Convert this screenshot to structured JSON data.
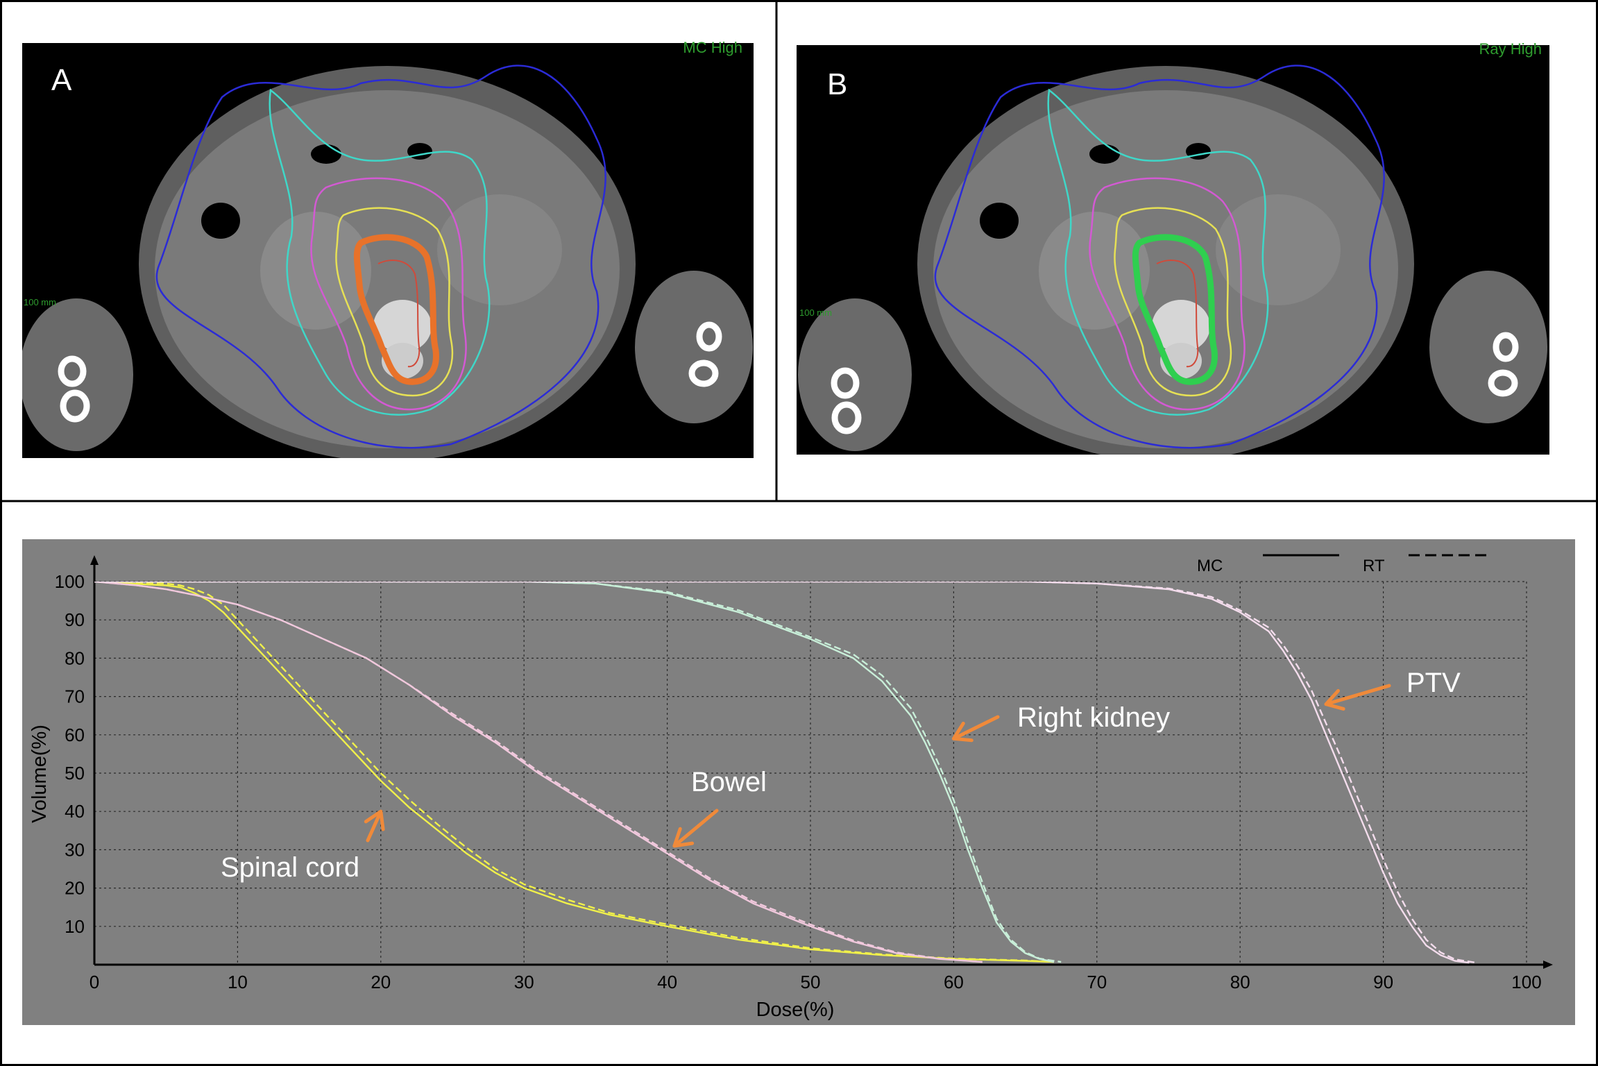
{
  "panels": {
    "a": {
      "letter": "A",
      "corner_label": "MC High",
      "scale_label": "100 mm",
      "target_color": "#e8722a"
    },
    "b": {
      "letter": "B",
      "corner_label": "Ray High",
      "scale_label": "100 mm",
      "target_color": "#2fcf4f"
    }
  },
  "chart_data": {
    "type": "line",
    "title": "",
    "xlabel": "Dose(%)",
    "ylabel": "Volume(%)",
    "xlim": [
      0,
      100
    ],
    "ylim": [
      0,
      100
    ],
    "xticks": [
      0,
      10,
      20,
      30,
      40,
      50,
      60,
      70,
      80,
      90,
      100
    ],
    "yticks": [
      10,
      20,
      30,
      40,
      50,
      60,
      70,
      80,
      90,
      100
    ],
    "grid": true,
    "background": "#808080",
    "legend": {
      "position": "top-right",
      "entries": [
        {
          "label": "MC",
          "style": "solid"
        },
        {
          "label": "RT",
          "style": "dashed"
        }
      ]
    },
    "series": [
      {
        "name": "Spinal cord",
        "color": "#f0f04a",
        "method": "MC",
        "x": [
          0,
          5,
          6,
          7,
          8,
          9,
          10,
          12,
          14,
          16,
          18,
          20,
          22,
          24,
          26,
          28,
          30,
          33,
          36,
          40,
          45,
          50,
          55,
          60,
          65,
          67
        ],
        "y": [
          100,
          99,
          98.5,
          97,
          95,
          92,
          88,
          80,
          72,
          64,
          56,
          48,
          41,
          35,
          29,
          24,
          20,
          16,
          13,
          10,
          6.5,
          4,
          2.5,
          1.5,
          1,
          0.7
        ]
      },
      {
        "name": "Spinal cord",
        "color": "#f0f04a",
        "method": "RT",
        "x": [
          0,
          5,
          6,
          7,
          8,
          9,
          10,
          12,
          14,
          16,
          18,
          20,
          22,
          24,
          26,
          28,
          30,
          33,
          36,
          40,
          45,
          50,
          55,
          60,
          65,
          67
        ],
        "y": [
          100,
          99.5,
          99,
          98,
          96.5,
          94,
          90,
          82,
          74,
          66,
          58,
          50,
          43,
          36.5,
          30.5,
          25,
          21,
          17,
          13.5,
          10.5,
          7,
          4.3,
          2.7,
          1.6,
          1.1,
          0.7
        ]
      },
      {
        "name": "Bowel",
        "color": "#f0c8dc",
        "method": "MC",
        "x": [
          0,
          3,
          5,
          7,
          10,
          13,
          16,
          19,
          22,
          25,
          28,
          31,
          34,
          37,
          40,
          43,
          46,
          50,
          53,
          56,
          59,
          62
        ],
        "y": [
          100,
          99,
          98,
          96.5,
          94,
          90,
          85,
          80,
          73,
          65,
          58,
          50,
          43,
          36,
          29,
          22,
          16,
          10,
          6,
          3,
          1.5,
          0.7
        ]
      },
      {
        "name": "Bowel",
        "color": "#f0c8dc",
        "method": "RT",
        "x": [
          0,
          3,
          5,
          7,
          10,
          13,
          16,
          19,
          22,
          25,
          28,
          31,
          34,
          37,
          40,
          43,
          46,
          50,
          53,
          56,
          59,
          62
        ],
        "y": [
          100,
          99,
          98,
          96.5,
          94,
          90,
          85,
          80,
          73,
          65.5,
          58.5,
          50.5,
          43.5,
          36.5,
          29.5,
          22.5,
          16.5,
          10.5,
          6.3,
          3.2,
          1.6,
          0.7
        ]
      },
      {
        "name": "Right kidney",
        "color": "#c8eed8",
        "method": "MC",
        "x": [
          0,
          30,
          35,
          40,
          45,
          50,
          53,
          55,
          57,
          58,
          59,
          60,
          61,
          62,
          63,
          64,
          65,
          66,
          67
        ],
        "y": [
          100,
          100,
          99.5,
          97,
          92,
          85,
          80,
          74,
          65,
          58,
          50,
          41,
          30,
          20,
          11,
          6,
          3,
          1.5,
          0.7
        ]
      },
      {
        "name": "Right kidney",
        "color": "#c8eed8",
        "method": "RT",
        "x": [
          0,
          30,
          35,
          40,
          45,
          50,
          53,
          55,
          57,
          58,
          59,
          60,
          61,
          62,
          63,
          64,
          65,
          66,
          67.5
        ],
        "y": [
          100,
          100,
          99.5,
          97.3,
          92.5,
          85.5,
          81,
          75.5,
          67,
          60,
          52,
          43,
          32,
          21.5,
          12,
          6.5,
          3.3,
          1.6,
          0.7
        ]
      },
      {
        "name": "PTV",
        "color": "#f3dcec",
        "method": "MC",
        "x": [
          0,
          65,
          70,
          75,
          78,
          80,
          82,
          83,
          84,
          85,
          86,
          87,
          88,
          89,
          90,
          91,
          92,
          93,
          94,
          95,
          96
        ],
        "y": [
          100,
          100,
          99.5,
          98,
          95.5,
          92,
          87,
          82,
          76,
          69,
          60,
          51,
          42,
          33,
          24,
          16,
          10,
          5,
          2.5,
          1,
          0.5
        ]
      },
      {
        "name": "PTV",
        "color": "#f3dcec",
        "method": "RT",
        "x": [
          0,
          65,
          70,
          75,
          78,
          80,
          82,
          83,
          84,
          85,
          86,
          87,
          88,
          89,
          90,
          91,
          92,
          93,
          94,
          95,
          96.5
        ],
        "y": [
          100,
          100,
          99.5,
          98.2,
          96,
          92.5,
          88,
          83.5,
          78,
          71.5,
          63,
          54.5,
          45.5,
          36.5,
          27.5,
          19,
          12,
          6.5,
          3.2,
          1.4,
          0.5
        ]
      }
    ],
    "annotations": [
      {
        "text": "Spinal cord",
        "arrow_to": [
          20,
          40
        ]
      },
      {
        "text": "Bowel",
        "arrow_to": [
          40.5,
          31
        ]
      },
      {
        "text": "Right kidney",
        "arrow_to": [
          60,
          59
        ]
      },
      {
        "text": "PTV",
        "arrow_to": [
          86,
          68
        ]
      }
    ]
  }
}
